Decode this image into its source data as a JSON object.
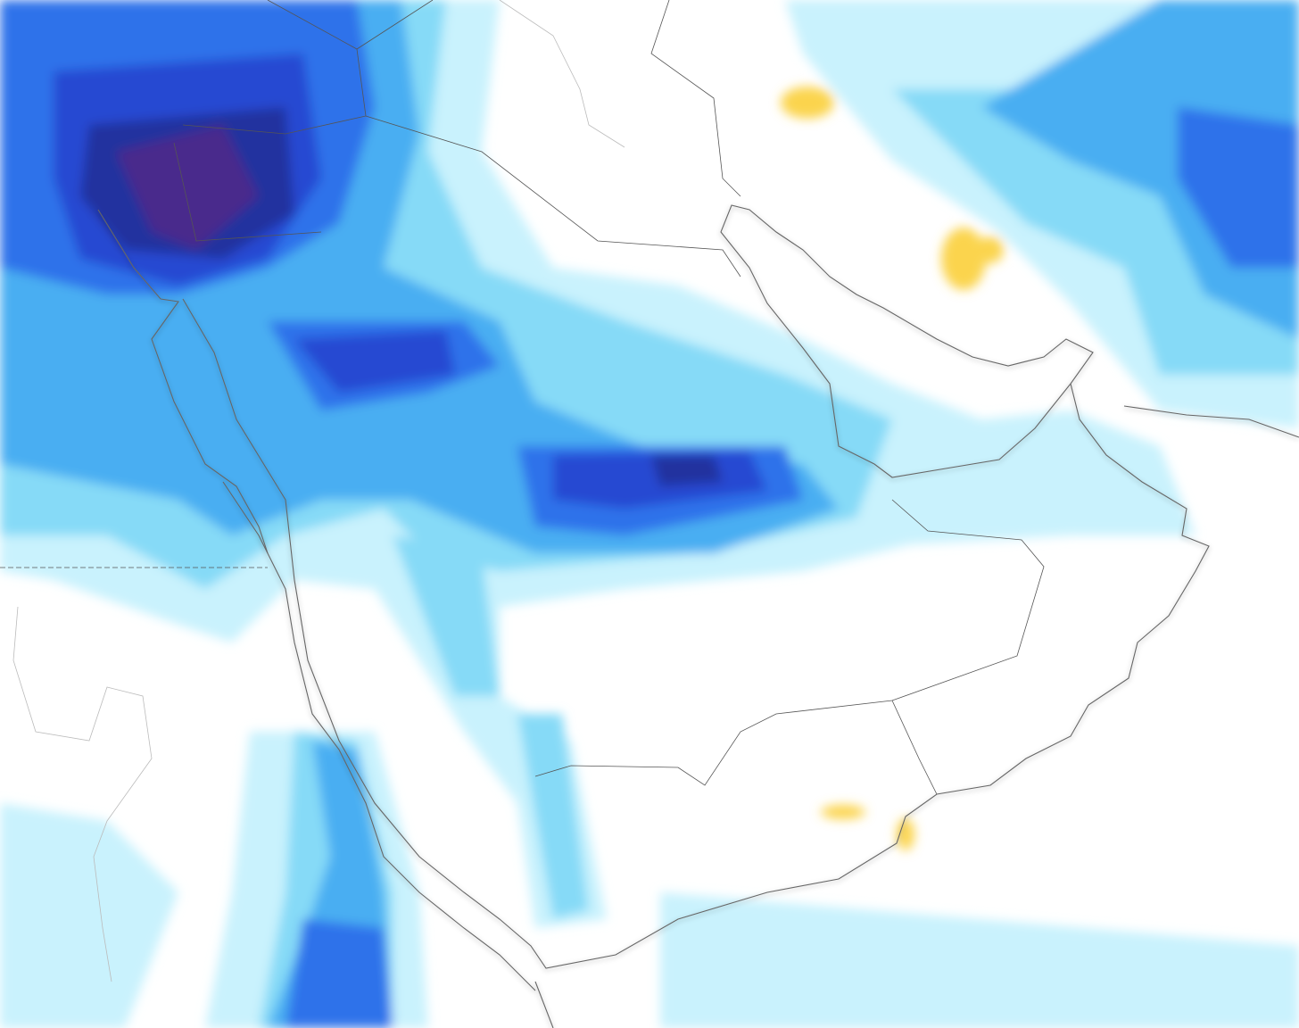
{
  "map": {
    "background_color": "#ffffff",
    "coastline_color": "#6f6f6f",
    "border_color": "#555555",
    "precipitation_levels": [
      {
        "level": 1,
        "color": "#c9f2fd"
      },
      {
        "level": 2,
        "color": "#86daf7"
      },
      {
        "level": 3,
        "color": "#4aaef2"
      },
      {
        "level": 4,
        "color": "#2f72ea"
      },
      {
        "level": 5,
        "color": "#2748d2"
      },
      {
        "level": 6,
        "color": "#24309f"
      },
      {
        "level": 7,
        "color": "#4a2a8c"
      }
    ],
    "mixed_precip_color": "#fbd44e",
    "mixed_precip_heavy_color": "#f29a4a",
    "snow_icon": "snowflake-icon"
  }
}
